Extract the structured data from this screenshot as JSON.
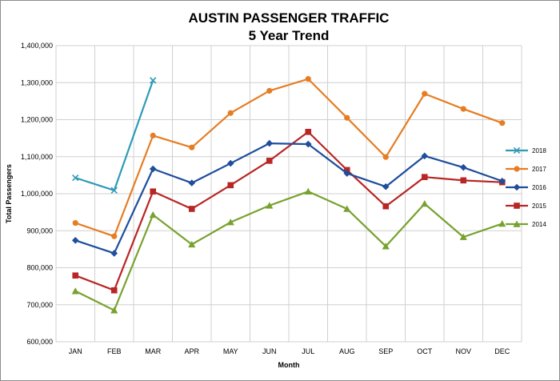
{
  "chart_data": {
    "type": "line",
    "title": "AUSTIN PASSENGER TRAFFIC",
    "subtitle": "5 Year Trend",
    "xlabel": "Month",
    "ylabel": "Total Passengers",
    "categories": [
      "JAN",
      "FEB",
      "MAR",
      "APR",
      "MAY",
      "JUN",
      "JUL",
      "AUG",
      "SEP",
      "OCT",
      "NOV",
      "DEC"
    ],
    "ylim": [
      600000,
      1400000
    ],
    "yticks": [
      600000,
      700000,
      800000,
      900000,
      1000000,
      1100000,
      1200000,
      1300000,
      1400000
    ],
    "ytick_labels": [
      "600,000",
      "700,000",
      "800,000",
      "900,000",
      "1,000,000",
      "1,100,000",
      "1,200,000",
      "1,300,000",
      "1,400,000"
    ],
    "grid": true,
    "legend_position": "right",
    "series": [
      {
        "name": "2018",
        "color": "#2e9bb5",
        "marker": "x",
        "values": [
          1043000,
          1009000,
          1306000,
          null,
          null,
          null,
          null,
          null,
          null,
          null,
          null,
          null
        ]
      },
      {
        "name": "2017",
        "color": "#e67d22",
        "marker": "circle",
        "values": [
          921000,
          885000,
          1157000,
          1125000,
          1218000,
          1278000,
          1310000,
          1205000,
          1099000,
          1270000,
          1229000,
          1191000
        ]
      },
      {
        "name": "2016",
        "color": "#1f4e9c",
        "marker": "diamond",
        "values": [
          874000,
          839000,
          1067000,
          1029000,
          1082000,
          1136000,
          1134000,
          1055000,
          1019000,
          1102000,
          1071000,
          1034000
        ]
      },
      {
        "name": "2015",
        "color": "#b82625",
        "marker": "square",
        "values": [
          779000,
          739000,
          1006000,
          959000,
          1023000,
          1089000,
          1167000,
          1064000,
          966000,
          1045000,
          1036000,
          1031000
        ]
      },
      {
        "name": "2014",
        "color": "#78a22f",
        "marker": "triangle",
        "values": [
          737000,
          685000,
          943000,
          863000,
          923000,
          968000,
          1006000,
          959000,
          858000,
          973000,
          883000,
          919000
        ]
      }
    ]
  }
}
